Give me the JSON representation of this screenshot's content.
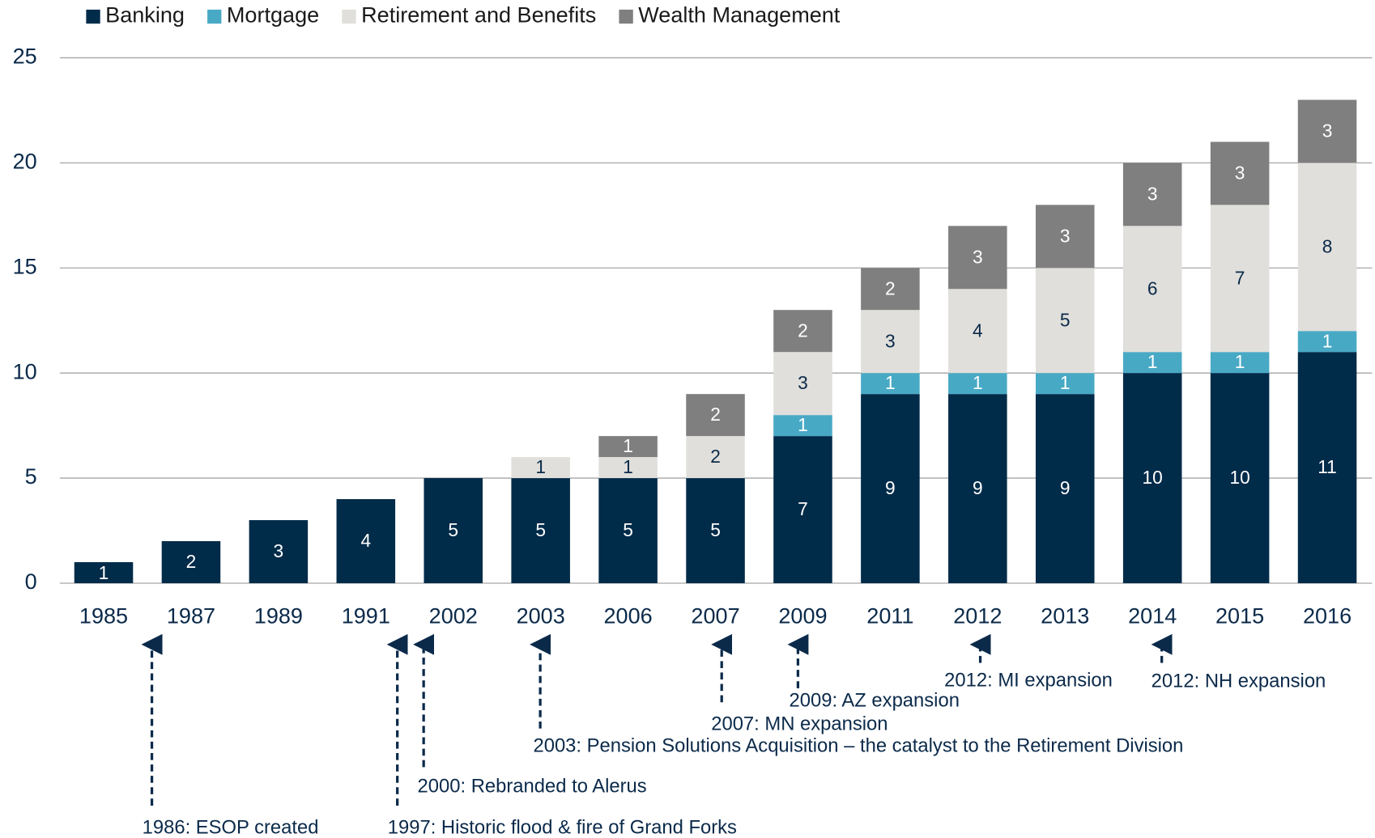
{
  "chart_data": {
    "type": "bar",
    "stacked": true,
    "categories": [
      "1985",
      "1987",
      "1989",
      "1991",
      "2002",
      "2003",
      "2006",
      "2007",
      "2009",
      "2011",
      "2012",
      "2013",
      "2014",
      "2015",
      "2016"
    ],
    "series": [
      {
        "name": "Banking",
        "color": "#002b49",
        "values": [
          1,
          2,
          3,
          4,
          5,
          5,
          5,
          5,
          7,
          9,
          9,
          9,
          10,
          10,
          11
        ]
      },
      {
        "name": "Mortgage",
        "color": "#48a9c5",
        "values": [
          null,
          null,
          null,
          null,
          null,
          null,
          null,
          null,
          1,
          1,
          1,
          1,
          1,
          1,
          1
        ]
      },
      {
        "name": "Retirement and Benefits",
        "color": "#e0dfdb",
        "values": [
          null,
          null,
          null,
          null,
          null,
          1,
          1,
          2,
          3,
          3,
          4,
          5,
          6,
          7,
          8
        ]
      },
      {
        "name": "Wealth Management",
        "color": "#7f7f7f",
        "values": [
          null,
          null,
          null,
          null,
          null,
          null,
          1,
          2,
          2,
          2,
          3,
          3,
          3,
          3,
          3
        ]
      }
    ],
    "ylim": [
      0,
      25
    ],
    "yticks": [
      0,
      5,
      10,
      15,
      20,
      25
    ],
    "grid": true,
    "legend": "top-left",
    "annotations": [
      "1986: ESOP created",
      "1997: Historic flood & fire of Grand Forks",
      "2000: Rebranded to Alerus",
      "2003: Pension Solutions Acquisition – the catalyst to the Retirement Division",
      "2007: MN expansion",
      "2009: AZ expansion",
      "2012: MI expansion",
      "2012: NH expansion"
    ]
  }
}
